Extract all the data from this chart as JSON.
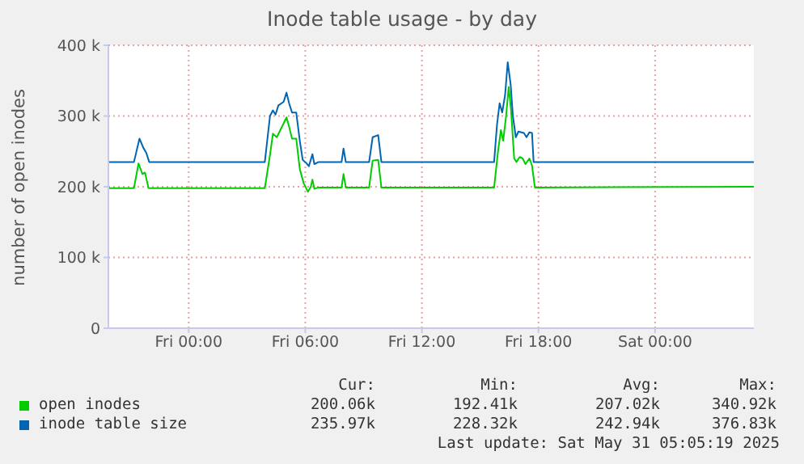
{
  "chart_data": {
    "type": "line",
    "title": "Inode table usage - by day",
    "ylabel": "number of open inodes",
    "xlim": [
      "2025-05-29T19:52",
      "2025-05-31T05:05"
    ],
    "xticks": [
      {
        "value": "2025-05-30T00:00",
        "label": "Fri 00:00"
      },
      {
        "value": "2025-05-30T06:00",
        "label": "Fri 06:00"
      },
      {
        "value": "2025-05-30T12:00",
        "label": "Fri 12:00"
      },
      {
        "value": "2025-05-30T18:00",
        "label": "Fri 18:00"
      },
      {
        "value": "2025-05-31T00:00",
        "label": "Sat 00:00"
      }
    ],
    "ylim": [
      0,
      400000
    ],
    "yticks": [
      {
        "value": 0,
        "label": "0"
      },
      {
        "value": 100000,
        "label": "100 k"
      },
      {
        "value": 200000,
        "label": "200 k"
      },
      {
        "value": 300000,
        "label": "300 k"
      },
      {
        "value": 400000,
        "label": "400 k"
      }
    ],
    "grid": true,
    "legend": "bottom",
    "marker": "none",
    "line_style": "solid",
    "series": [
      {
        "name": "open inodes",
        "color": "#00cc00",
        "x": [
          "2025-05-29T19:52",
          "2025-05-29T21:11",
          "2025-05-29T21:25",
          "2025-05-29T21:37",
          "2025-05-29T21:45",
          "2025-05-29T21:56",
          "2025-05-30T03:55",
          "2025-05-30T04:11",
          "2025-05-30T04:20",
          "2025-05-30T04:32",
          "2025-05-30T04:45",
          "2025-05-30T05:02",
          "2025-05-30T05:10",
          "2025-05-30T05:19",
          "2025-05-30T05:32",
          "2025-05-30T05:43",
          "2025-05-30T05:55",
          "2025-05-30T06:08",
          "2025-05-30T06:17",
          "2025-05-30T06:22",
          "2025-05-30T06:28",
          "2025-05-30T06:41",
          "2025-05-30T07:52",
          "2025-05-30T07:58",
          "2025-05-30T08:05",
          "2025-05-30T09:17",
          "2025-05-30T09:28",
          "2025-05-30T09:45",
          "2025-05-30T09:55",
          "2025-05-30T15:43",
          "2025-05-30T15:55",
          "2025-05-30T16:04",
          "2025-05-30T16:11",
          "2025-05-30T16:20",
          "2025-05-30T16:28",
          "2025-05-30T16:35",
          "2025-05-30T16:45",
          "2025-05-30T16:52",
          "2025-05-30T17:02",
          "2025-05-30T17:11",
          "2025-05-30T17:20",
          "2025-05-30T17:32",
          "2025-05-30T17:40",
          "2025-05-30T17:49",
          "2025-05-31T05:05"
        ],
        "values": [
          198000,
          198000,
          233000,
          218000,
          220000,
          198000,
          198000,
          245000,
          275000,
          270000,
          282000,
          298000,
          285000,
          268000,
          268000,
          225000,
          205000,
          193000,
          200000,
          210000,
          197000,
          199000,
          199000,
          218000,
          199000,
          199000,
          237000,
          238000,
          199000,
          199000,
          250000,
          280000,
          265000,
          300000,
          341000,
          310000,
          240000,
          235000,
          242000,
          240000,
          232000,
          240000,
          230000,
          199000,
          200000
        ]
      },
      {
        "name": "inode table size",
        "color": "#0066b3",
        "x": [
          "2025-05-29T19:52",
          "2025-05-29T21:11",
          "2025-05-29T21:28",
          "2025-05-29T21:40",
          "2025-05-29T21:49",
          "2025-05-29T21:58",
          "2025-05-30T03:55",
          "2025-05-30T04:11",
          "2025-05-30T04:20",
          "2025-05-30T04:28",
          "2025-05-30T04:37",
          "2025-05-30T04:53",
          "2025-05-30T05:02",
          "2025-05-30T05:10",
          "2025-05-30T05:19",
          "2025-05-30T05:32",
          "2025-05-30T05:43",
          "2025-05-30T05:52",
          "2025-05-30T06:04",
          "2025-05-30T06:11",
          "2025-05-30T06:22",
          "2025-05-30T06:28",
          "2025-05-30T06:41",
          "2025-05-30T07:52",
          "2025-05-30T07:58",
          "2025-05-30T08:05",
          "2025-05-30T09:17",
          "2025-05-30T09:28",
          "2025-05-30T09:45",
          "2025-05-30T09:55",
          "2025-05-30T15:43",
          "2025-05-30T15:52",
          "2025-05-30T16:00",
          "2025-05-30T16:08",
          "2025-05-30T16:17",
          "2025-05-30T16:25",
          "2025-05-30T16:34",
          "2025-05-30T16:41",
          "2025-05-30T16:50",
          "2025-05-30T16:58",
          "2025-05-30T17:15",
          "2025-05-30T17:23",
          "2025-05-30T17:32",
          "2025-05-30T17:40",
          "2025-05-30T17:45",
          "2025-05-31T05:05"
        ],
        "values": [
          235000,
          235000,
          268000,
          255000,
          248000,
          235000,
          235000,
          300000,
          308000,
          302000,
          315000,
          320000,
          333000,
          318000,
          305000,
          305000,
          265000,
          238000,
          233000,
          229000,
          246000,
          232000,
          235000,
          235000,
          254000,
          235000,
          235000,
          270000,
          273000,
          235000,
          235000,
          288000,
          318000,
          305000,
          330000,
          376000,
          345000,
          300000,
          270000,
          278000,
          276000,
          270000,
          277000,
          276000,
          235000,
          235000
        ]
      }
    ],
    "annotations": [
      "Cur:",
      "Min:",
      "Avg:",
      "Max:",
      "200.06k",
      "192.41k",
      "207.02k",
      "340.92k",
      "235.97k",
      "228.32k",
      "242.94k",
      "376.83k",
      "Last update: Sat May 31 05:05:19 2025"
    ]
  }
}
